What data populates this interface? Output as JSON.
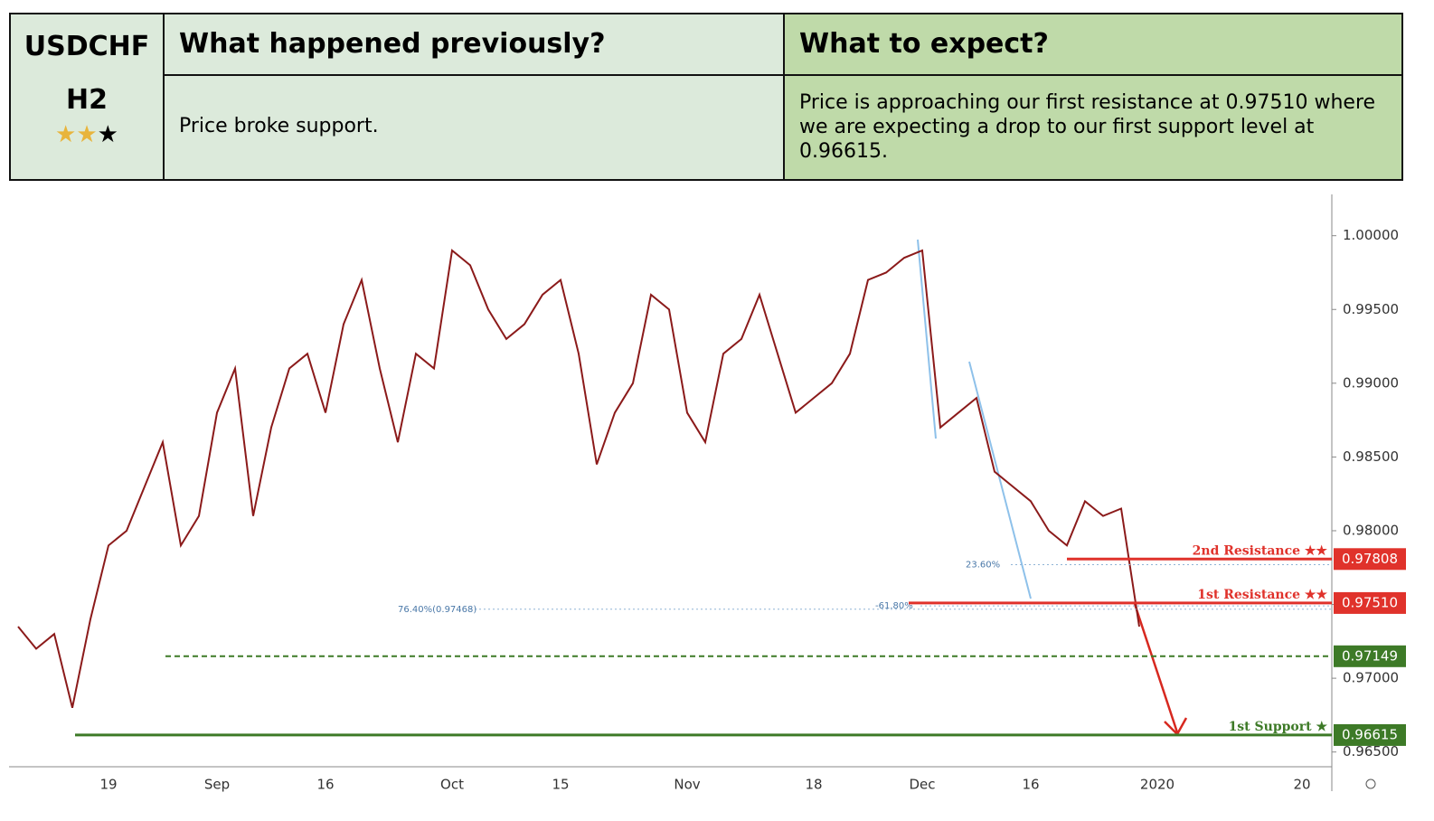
{
  "header": {
    "symbol": "USDCHF",
    "timeframe": "H2",
    "col2_title": "What happened previously?",
    "col3_title": "What to expect?",
    "col2_text": "Price broke support.",
    "col3_text": "Price is approaching our first resistance at 0.97510 where we are expecting a drop to our first support level at 0.96615."
  },
  "chart_data": {
    "type": "line",
    "color": "#8b1a1a",
    "categories": [
      null,
      null,
      null,
      null,
      null,
      "19",
      null,
      null,
      null,
      null,
      null,
      "Sep",
      null,
      null,
      null,
      null,
      null,
      "16",
      null,
      null,
      null,
      null,
      null,
      null,
      "Oct",
      null,
      null,
      null,
      null,
      null,
      "15",
      null,
      null,
      null,
      null,
      null,
      null,
      "Nov",
      null,
      null,
      null,
      null,
      null,
      null,
      "18",
      null,
      null,
      null,
      null,
      null,
      "Dec",
      null,
      null,
      null,
      null,
      null,
      "16",
      null,
      null,
      null,
      null,
      null,
      null,
      "2020",
      null,
      null,
      null,
      null,
      null,
      null,
      null,
      "20",
      null
    ],
    "values": [
      0.9735,
      0.972,
      0.973,
      0.968,
      0.974,
      0.979,
      0.98,
      0.983,
      0.986,
      0.979,
      0.981,
      0.988,
      0.991,
      0.981,
      0.987,
      0.991,
      0.992,
      0.988,
      0.994,
      0.997,
      0.991,
      0.986,
      0.992,
      0.991,
      0.999,
      0.998,
      0.995,
      0.993,
      0.994,
      0.996,
      0.997,
      0.992,
      0.9845,
      0.988,
      0.99,
      0.996,
      0.995,
      0.988,
      0.986,
      0.992,
      0.993,
      0.996,
      0.992,
      0.988,
      0.989,
      0.99,
      0.992,
      0.997,
      0.9975,
      0.9985,
      0.999,
      0.987,
      0.988,
      0.989,
      0.984,
      0.983,
      0.982,
      0.98,
      0.979,
      0.982,
      0.981,
      0.9815,
      0.9735,
      null,
      null,
      null,
      null,
      null,
      null,
      null,
      null,
      null,
      null
    ],
    "ylim": [
      0.964,
      1.0028
    ],
    "yticks": [
      {
        "value": 0.965,
        "label": "0.96500"
      },
      {
        "value": 0.97,
        "label": "0.97000"
      },
      {
        "value": 0.975,
        "label": "0.97500"
      },
      {
        "value": 0.98,
        "label": "0.98000"
      },
      {
        "value": 0.985,
        "label": "0.98500"
      },
      {
        "value": 0.99,
        "label": "0.99000"
      },
      {
        "value": 0.995,
        "label": "0.99500"
      },
      {
        "value": 1.0,
        "label": "1.00000"
      }
    ],
    "levels": [
      {
        "name": "2nd Resistance ★★",
        "value": 0.97808,
        "label": "0.97808",
        "color": "#e0322b"
      },
      {
        "name": "1st Resistance ★★",
        "value": 0.9751,
        "label": "0.97510",
        "color": "#e0322b"
      },
      {
        "value": 0.97149,
        "label": "0.97149",
        "color": "#3d7a27"
      },
      {
        "name": "1st Support ★",
        "value": 0.96615,
        "label": "0.96615",
        "color": "#3d7a27"
      }
    ],
    "fib_lines": [
      {
        "label": "23.60%",
        "value": 0.9777
      },
      {
        "label": "-61.80%",
        "value": 0.9749
      },
      {
        "label": "76.40%(0.97468)",
        "value": 0.97468
      }
    ]
  }
}
